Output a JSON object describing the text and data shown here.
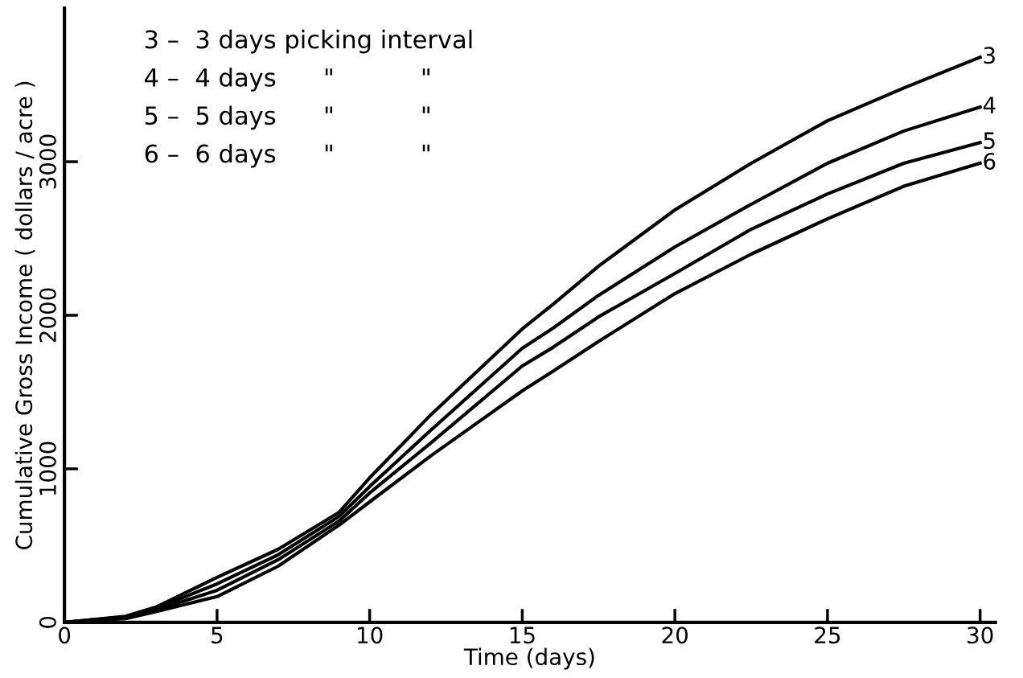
{
  "chart_data": {
    "type": "line",
    "xlabel": "Time (days)",
    "ylabel": "Cumulative Gross Income ( dollars / acre )",
    "x": [
      0,
      2,
      3,
      5,
      7,
      9,
      10,
      12,
      15,
      16,
      17.5,
      20,
      22.5,
      25,
      27.5,
      30
    ],
    "series": [
      {
        "name": "3",
        "color": "#000000",
        "values": [
          0,
          40,
          100,
          293,
          476,
          717,
          942,
          1351,
          1911,
          2070,
          2320,
          2686,
          2990,
          3267,
          3480,
          3680
        ]
      },
      {
        "name": "4",
        "color": "#000000",
        "values": [
          0,
          35,
          90,
          251,
          440,
          691,
          885,
          1251,
          1785,
          1915,
          2130,
          2445,
          2723,
          2990,
          3200,
          3356
        ]
      },
      {
        "name": "5",
        "color": "#000000",
        "values": [
          0,
          30,
          80,
          209,
          408,
          660,
          843,
          1168,
          1670,
          1790,
          1990,
          2272,
          2560,
          2790,
          2990,
          3125
        ]
      },
      {
        "name": "6",
        "color": "#000000",
        "values": [
          0,
          25,
          70,
          168,
          366,
          634,
          785,
          1084,
          1508,
          1635,
          1830,
          2141,
          2398,
          2628,
          2840,
          2990
        ]
      }
    ],
    "annotations": [
      "3 –  3 days picking interval",
      "4 –  4 days      \"           \"",
      "5 –  5 days      \"           \"",
      "6 –  6 days      \"           \""
    ],
    "xlim": [
      0,
      30.5
    ],
    "ylim": [
      0,
      4000
    ],
    "xticks": [
      0,
      5,
      10,
      15,
      20,
      25,
      30
    ],
    "yticks": [
      0,
      1000,
      2000,
      3000
    ],
    "grid": false,
    "legend": false,
    "marker": "none",
    "line_style": "solid"
  }
}
